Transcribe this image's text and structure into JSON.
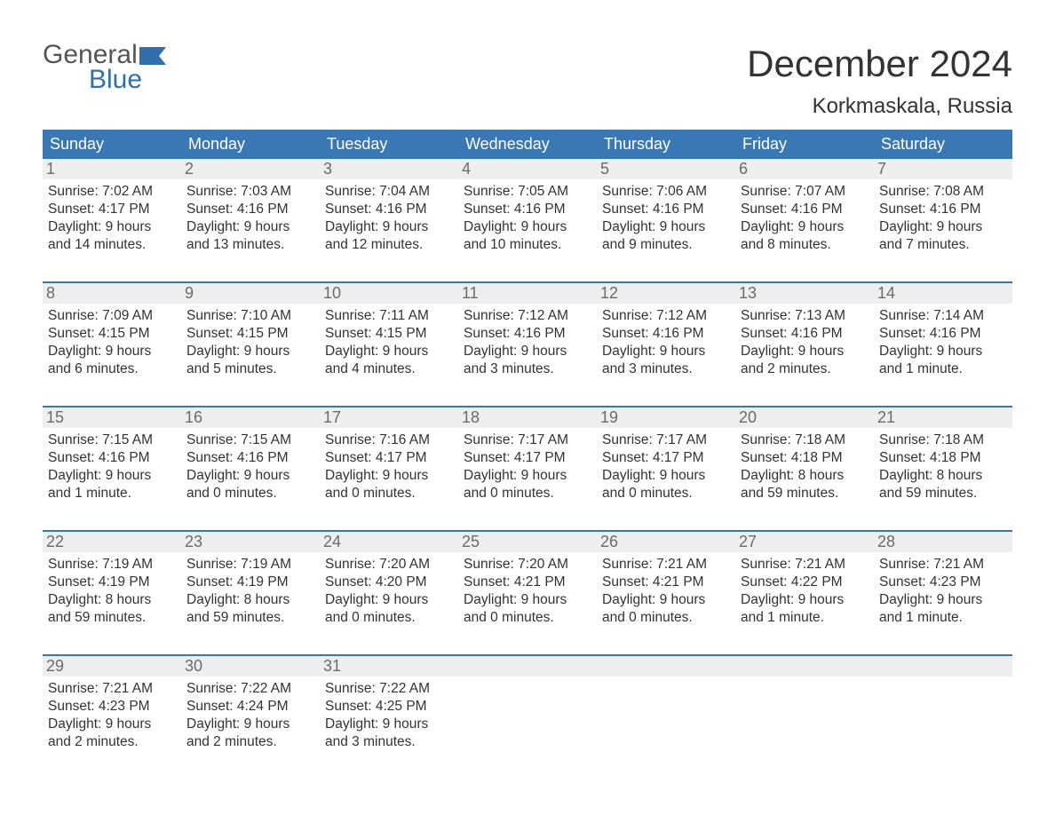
{
  "logo": {
    "word1": "General",
    "word2": "Blue",
    "text_color": "#2f6fae",
    "flag_color": "#2f6fae"
  },
  "title": "December 2024",
  "location": "Korkmaskala, Russia",
  "colors": {
    "header_bg": "#3a77b5",
    "header_text": "#ffffff",
    "daynum_bg": "#eeeeee",
    "daynum_text": "#6b6b6b",
    "body_text": "#333333",
    "rule": "#3a77b5",
    "page_bg": "#ffffff"
  },
  "day_headers": [
    "Sunday",
    "Monday",
    "Tuesday",
    "Wednesday",
    "Thursday",
    "Friday",
    "Saturday"
  ],
  "weeks": [
    [
      {
        "n": "1",
        "sr": "Sunrise: 7:02 AM",
        "ss": "Sunset: 4:17 PM",
        "d1": "Daylight: 9 hours",
        "d2": "and 14 minutes."
      },
      {
        "n": "2",
        "sr": "Sunrise: 7:03 AM",
        "ss": "Sunset: 4:16 PM",
        "d1": "Daylight: 9 hours",
        "d2": "and 13 minutes."
      },
      {
        "n": "3",
        "sr": "Sunrise: 7:04 AM",
        "ss": "Sunset: 4:16 PM",
        "d1": "Daylight: 9 hours",
        "d2": "and 12 minutes."
      },
      {
        "n": "4",
        "sr": "Sunrise: 7:05 AM",
        "ss": "Sunset: 4:16 PM",
        "d1": "Daylight: 9 hours",
        "d2": "and 10 minutes."
      },
      {
        "n": "5",
        "sr": "Sunrise: 7:06 AM",
        "ss": "Sunset: 4:16 PM",
        "d1": "Daylight: 9 hours",
        "d2": "and 9 minutes."
      },
      {
        "n": "6",
        "sr": "Sunrise: 7:07 AM",
        "ss": "Sunset: 4:16 PM",
        "d1": "Daylight: 9 hours",
        "d2": "and 8 minutes."
      },
      {
        "n": "7",
        "sr": "Sunrise: 7:08 AM",
        "ss": "Sunset: 4:16 PM",
        "d1": "Daylight: 9 hours",
        "d2": "and 7 minutes."
      }
    ],
    [
      {
        "n": "8",
        "sr": "Sunrise: 7:09 AM",
        "ss": "Sunset: 4:15 PM",
        "d1": "Daylight: 9 hours",
        "d2": "and 6 minutes."
      },
      {
        "n": "9",
        "sr": "Sunrise: 7:10 AM",
        "ss": "Sunset: 4:15 PM",
        "d1": "Daylight: 9 hours",
        "d2": "and 5 minutes."
      },
      {
        "n": "10",
        "sr": "Sunrise: 7:11 AM",
        "ss": "Sunset: 4:15 PM",
        "d1": "Daylight: 9 hours",
        "d2": "and 4 minutes."
      },
      {
        "n": "11",
        "sr": "Sunrise: 7:12 AM",
        "ss": "Sunset: 4:16 PM",
        "d1": "Daylight: 9 hours",
        "d2": "and 3 minutes."
      },
      {
        "n": "12",
        "sr": "Sunrise: 7:12 AM",
        "ss": "Sunset: 4:16 PM",
        "d1": "Daylight: 9 hours",
        "d2": "and 3 minutes."
      },
      {
        "n": "13",
        "sr": "Sunrise: 7:13 AM",
        "ss": "Sunset: 4:16 PM",
        "d1": "Daylight: 9 hours",
        "d2": "and 2 minutes."
      },
      {
        "n": "14",
        "sr": "Sunrise: 7:14 AM",
        "ss": "Sunset: 4:16 PM",
        "d1": "Daylight: 9 hours",
        "d2": "and 1 minute."
      }
    ],
    [
      {
        "n": "15",
        "sr": "Sunrise: 7:15 AM",
        "ss": "Sunset: 4:16 PM",
        "d1": "Daylight: 9 hours",
        "d2": "and 1 minute."
      },
      {
        "n": "16",
        "sr": "Sunrise: 7:15 AM",
        "ss": "Sunset: 4:16 PM",
        "d1": "Daylight: 9 hours",
        "d2": "and 0 minutes."
      },
      {
        "n": "17",
        "sr": "Sunrise: 7:16 AM",
        "ss": "Sunset: 4:17 PM",
        "d1": "Daylight: 9 hours",
        "d2": "and 0 minutes."
      },
      {
        "n": "18",
        "sr": "Sunrise: 7:17 AM",
        "ss": "Sunset: 4:17 PM",
        "d1": "Daylight: 9 hours",
        "d2": "and 0 minutes."
      },
      {
        "n": "19",
        "sr": "Sunrise: 7:17 AM",
        "ss": "Sunset: 4:17 PM",
        "d1": "Daylight: 9 hours",
        "d2": "and 0 minutes."
      },
      {
        "n": "20",
        "sr": "Sunrise: 7:18 AM",
        "ss": "Sunset: 4:18 PM",
        "d1": "Daylight: 8 hours",
        "d2": "and 59 minutes."
      },
      {
        "n": "21",
        "sr": "Sunrise: 7:18 AM",
        "ss": "Sunset: 4:18 PM",
        "d1": "Daylight: 8 hours",
        "d2": "and 59 minutes."
      }
    ],
    [
      {
        "n": "22",
        "sr": "Sunrise: 7:19 AM",
        "ss": "Sunset: 4:19 PM",
        "d1": "Daylight: 8 hours",
        "d2": "and 59 minutes."
      },
      {
        "n": "23",
        "sr": "Sunrise: 7:19 AM",
        "ss": "Sunset: 4:19 PM",
        "d1": "Daylight: 8 hours",
        "d2": "and 59 minutes."
      },
      {
        "n": "24",
        "sr": "Sunrise: 7:20 AM",
        "ss": "Sunset: 4:20 PM",
        "d1": "Daylight: 9 hours",
        "d2": "and 0 minutes."
      },
      {
        "n": "25",
        "sr": "Sunrise: 7:20 AM",
        "ss": "Sunset: 4:21 PM",
        "d1": "Daylight: 9 hours",
        "d2": "and 0 minutes."
      },
      {
        "n": "26",
        "sr": "Sunrise: 7:21 AM",
        "ss": "Sunset: 4:21 PM",
        "d1": "Daylight: 9 hours",
        "d2": "and 0 minutes."
      },
      {
        "n": "27",
        "sr": "Sunrise: 7:21 AM",
        "ss": "Sunset: 4:22 PM",
        "d1": "Daylight: 9 hours",
        "d2": "and 1 minute."
      },
      {
        "n": "28",
        "sr": "Sunrise: 7:21 AM",
        "ss": "Sunset: 4:23 PM",
        "d1": "Daylight: 9 hours",
        "d2": "and 1 minute."
      }
    ],
    [
      {
        "n": "29",
        "sr": "Sunrise: 7:21 AM",
        "ss": "Sunset: 4:23 PM",
        "d1": "Daylight: 9 hours",
        "d2": "and 2 minutes."
      },
      {
        "n": "30",
        "sr": "Sunrise: 7:22 AM",
        "ss": "Sunset: 4:24 PM",
        "d1": "Daylight: 9 hours",
        "d2": "and 2 minutes."
      },
      {
        "n": "31",
        "sr": "Sunrise: 7:22 AM",
        "ss": "Sunset: 4:25 PM",
        "d1": "Daylight: 9 hours",
        "d2": "and 3 minutes."
      },
      null,
      null,
      null,
      null
    ]
  ]
}
